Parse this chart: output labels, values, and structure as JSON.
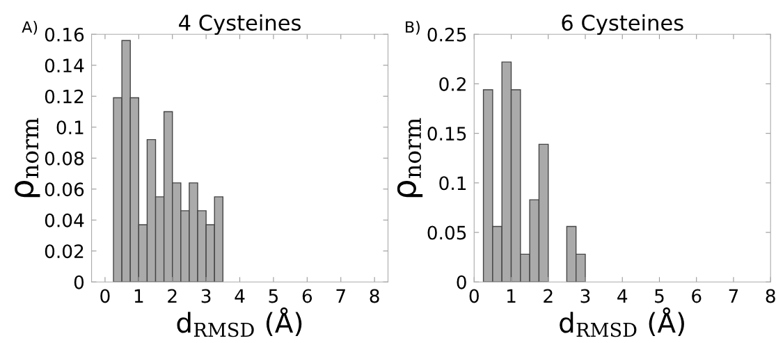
{
  "chart_data": [
    {
      "type": "histogram",
      "title": "4 Cysteines",
      "xlabel": "d$_{RMSD}$ (Å)",
      "ylabel": "ρ$_{norm}$",
      "annotations": [
        "A)"
      ],
      "color": "#aaaaaa",
      "bins": [
        0.25,
        0.5,
        0.75,
        1.0,
        1.25,
        1.5,
        1.75,
        2.0,
        2.25,
        2.5,
        2.75,
        3.0,
        3.25,
        3.5
      ],
      "values": [
        0.119,
        0.156,
        0.119,
        0.037,
        0.092,
        0.055,
        0.11,
        0.064,
        0.046,
        0.064,
        0.046,
        0.037,
        0.055
      ],
      "xlim": [
        -0.4,
        8.4
      ],
      "xticks": [
        0,
        1,
        2,
        3,
        4,
        5,
        6,
        7,
        8
      ],
      "ylim": [
        0,
        0.16
      ],
      "yticks": [
        0,
        0.02,
        0.04,
        0.06,
        0.08,
        0.1,
        0.12,
        0.14,
        0.16
      ],
      "grid": false
    },
    {
      "type": "histogram",
      "title": "6 Cysteines",
      "xlabel": "d$_{RMSD}$ (Å)",
      "ylabel": "ρ$_{norm}$",
      "annotations": [
        "B)"
      ],
      "color": "#aaaaaa",
      "bins": [
        0.25,
        0.5,
        0.75,
        1.0,
        1.25,
        1.5,
        1.75,
        2.0,
        2.25,
        2.5,
        2.75,
        3.0
      ],
      "values": [
        0.194,
        0.056,
        0.222,
        0.194,
        0.028,
        0.083,
        0.139,
        0,
        0,
        0.056,
        0.028
      ],
      "xlim": [
        0,
        8
      ],
      "xticks": [
        0,
        1,
        2,
        3,
        4,
        5,
        6,
        7,
        8
      ],
      "ylim": [
        0,
        0.25
      ],
      "yticks": [
        0,
        0.05,
        0.1,
        0.15,
        0.2,
        0.25
      ],
      "grid": false
    }
  ]
}
